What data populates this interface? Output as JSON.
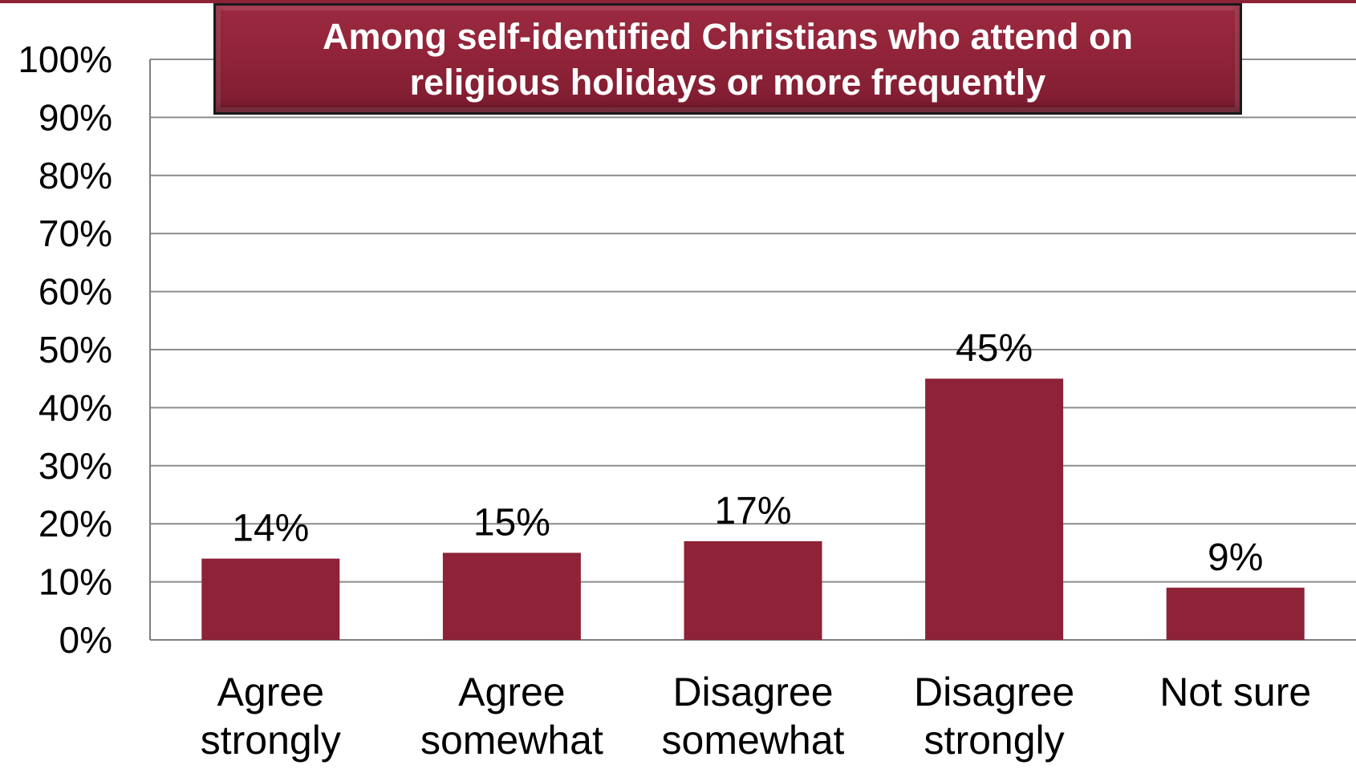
{
  "colors": {
    "bar": "#8e2237",
    "grid": "#8c8c8c",
    "axis": "#7f7f7f",
    "title_bg": "#8e2237",
    "title_text": "#ffffff"
  },
  "chart_data": {
    "type": "bar",
    "title": "Among self-identified Christians who attend on religious holidays or more frequently",
    "categories": [
      [
        "Agree",
        "strongly"
      ],
      [
        "Agree",
        "somewhat"
      ],
      [
        "Disagree",
        "somewhat"
      ],
      [
        "Disagree",
        "strongly"
      ],
      [
        "Not sure"
      ]
    ],
    "values": [
      14,
      15,
      17,
      45,
      9
    ],
    "data_labels": [
      "14%",
      "15%",
      "17%",
      "45%",
      "9%"
    ],
    "ylim": [
      0,
      100
    ],
    "yticks": [
      0,
      10,
      20,
      30,
      40,
      50,
      60,
      70,
      80,
      90,
      100
    ],
    "ytick_labels": [
      "0%",
      "10%",
      "20%",
      "30%",
      "40%",
      "50%",
      "60%",
      "70%",
      "80%",
      "90%",
      "100%"
    ],
    "xlabel": "",
    "ylabel": "",
    "grid": true,
    "legend": "none"
  }
}
